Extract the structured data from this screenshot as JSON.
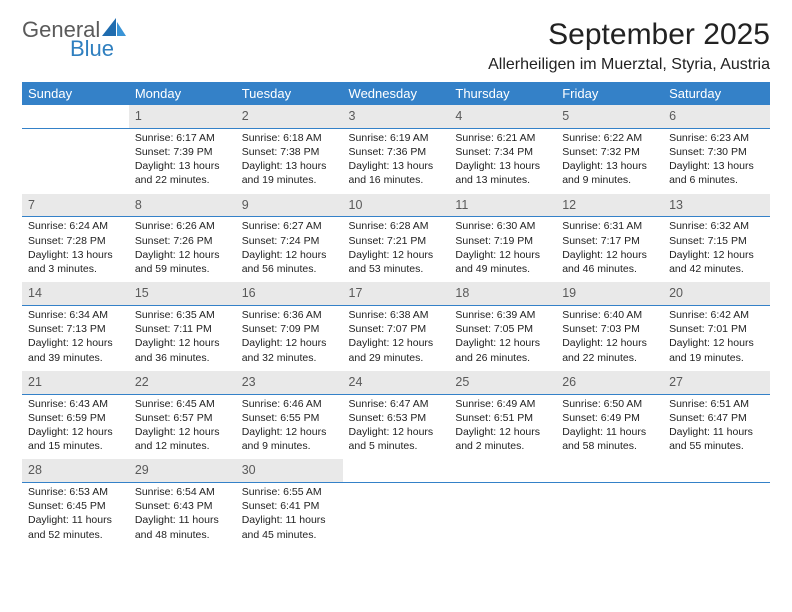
{
  "logo": {
    "text1": "General",
    "text2": "Blue",
    "icon_color": "#2f7fbf"
  },
  "title": "September 2025",
  "location": "Allerheiligen im Muerztal, Styria, Austria",
  "colors": {
    "header_bg": "#3481c8",
    "header_fg": "#ffffff",
    "daynum_bg": "#e9e9e9",
    "daynum_fg": "#5a5a5a",
    "rule": "#3481c8"
  },
  "weekdays": [
    "Sunday",
    "Monday",
    "Tuesday",
    "Wednesday",
    "Thursday",
    "Friday",
    "Saturday"
  ],
  "weeks": [
    [
      null,
      {
        "n": "1",
        "sr": "Sunrise: 6:17 AM",
        "ss": "Sunset: 7:39 PM",
        "d1": "Daylight: 13 hours",
        "d2": "and 22 minutes."
      },
      {
        "n": "2",
        "sr": "Sunrise: 6:18 AM",
        "ss": "Sunset: 7:38 PM",
        "d1": "Daylight: 13 hours",
        "d2": "and 19 minutes."
      },
      {
        "n": "3",
        "sr": "Sunrise: 6:19 AM",
        "ss": "Sunset: 7:36 PM",
        "d1": "Daylight: 13 hours",
        "d2": "and 16 minutes."
      },
      {
        "n": "4",
        "sr": "Sunrise: 6:21 AM",
        "ss": "Sunset: 7:34 PM",
        "d1": "Daylight: 13 hours",
        "d2": "and 13 minutes."
      },
      {
        "n": "5",
        "sr": "Sunrise: 6:22 AM",
        "ss": "Sunset: 7:32 PM",
        "d1": "Daylight: 13 hours",
        "d2": "and 9 minutes."
      },
      {
        "n": "6",
        "sr": "Sunrise: 6:23 AM",
        "ss": "Sunset: 7:30 PM",
        "d1": "Daylight: 13 hours",
        "d2": "and 6 minutes."
      }
    ],
    [
      {
        "n": "7",
        "sr": "Sunrise: 6:24 AM",
        "ss": "Sunset: 7:28 PM",
        "d1": "Daylight: 13 hours",
        "d2": "and 3 minutes."
      },
      {
        "n": "8",
        "sr": "Sunrise: 6:26 AM",
        "ss": "Sunset: 7:26 PM",
        "d1": "Daylight: 12 hours",
        "d2": "and 59 minutes."
      },
      {
        "n": "9",
        "sr": "Sunrise: 6:27 AM",
        "ss": "Sunset: 7:24 PM",
        "d1": "Daylight: 12 hours",
        "d2": "and 56 minutes."
      },
      {
        "n": "10",
        "sr": "Sunrise: 6:28 AM",
        "ss": "Sunset: 7:21 PM",
        "d1": "Daylight: 12 hours",
        "d2": "and 53 minutes."
      },
      {
        "n": "11",
        "sr": "Sunrise: 6:30 AM",
        "ss": "Sunset: 7:19 PM",
        "d1": "Daylight: 12 hours",
        "d2": "and 49 minutes."
      },
      {
        "n": "12",
        "sr": "Sunrise: 6:31 AM",
        "ss": "Sunset: 7:17 PM",
        "d1": "Daylight: 12 hours",
        "d2": "and 46 minutes."
      },
      {
        "n": "13",
        "sr": "Sunrise: 6:32 AM",
        "ss": "Sunset: 7:15 PM",
        "d1": "Daylight: 12 hours",
        "d2": "and 42 minutes."
      }
    ],
    [
      {
        "n": "14",
        "sr": "Sunrise: 6:34 AM",
        "ss": "Sunset: 7:13 PM",
        "d1": "Daylight: 12 hours",
        "d2": "and 39 minutes."
      },
      {
        "n": "15",
        "sr": "Sunrise: 6:35 AM",
        "ss": "Sunset: 7:11 PM",
        "d1": "Daylight: 12 hours",
        "d2": "and 36 minutes."
      },
      {
        "n": "16",
        "sr": "Sunrise: 6:36 AM",
        "ss": "Sunset: 7:09 PM",
        "d1": "Daylight: 12 hours",
        "d2": "and 32 minutes."
      },
      {
        "n": "17",
        "sr": "Sunrise: 6:38 AM",
        "ss": "Sunset: 7:07 PM",
        "d1": "Daylight: 12 hours",
        "d2": "and 29 minutes."
      },
      {
        "n": "18",
        "sr": "Sunrise: 6:39 AM",
        "ss": "Sunset: 7:05 PM",
        "d1": "Daylight: 12 hours",
        "d2": "and 26 minutes."
      },
      {
        "n": "19",
        "sr": "Sunrise: 6:40 AM",
        "ss": "Sunset: 7:03 PM",
        "d1": "Daylight: 12 hours",
        "d2": "and 22 minutes."
      },
      {
        "n": "20",
        "sr": "Sunrise: 6:42 AM",
        "ss": "Sunset: 7:01 PM",
        "d1": "Daylight: 12 hours",
        "d2": "and 19 minutes."
      }
    ],
    [
      {
        "n": "21",
        "sr": "Sunrise: 6:43 AM",
        "ss": "Sunset: 6:59 PM",
        "d1": "Daylight: 12 hours",
        "d2": "and 15 minutes."
      },
      {
        "n": "22",
        "sr": "Sunrise: 6:45 AM",
        "ss": "Sunset: 6:57 PM",
        "d1": "Daylight: 12 hours",
        "d2": "and 12 minutes."
      },
      {
        "n": "23",
        "sr": "Sunrise: 6:46 AM",
        "ss": "Sunset: 6:55 PM",
        "d1": "Daylight: 12 hours",
        "d2": "and 9 minutes."
      },
      {
        "n": "24",
        "sr": "Sunrise: 6:47 AM",
        "ss": "Sunset: 6:53 PM",
        "d1": "Daylight: 12 hours",
        "d2": "and 5 minutes."
      },
      {
        "n": "25",
        "sr": "Sunrise: 6:49 AM",
        "ss": "Sunset: 6:51 PM",
        "d1": "Daylight: 12 hours",
        "d2": "and 2 minutes."
      },
      {
        "n": "26",
        "sr": "Sunrise: 6:50 AM",
        "ss": "Sunset: 6:49 PM",
        "d1": "Daylight: 11 hours",
        "d2": "and 58 minutes."
      },
      {
        "n": "27",
        "sr": "Sunrise: 6:51 AM",
        "ss": "Sunset: 6:47 PM",
        "d1": "Daylight: 11 hours",
        "d2": "and 55 minutes."
      }
    ],
    [
      {
        "n": "28",
        "sr": "Sunrise: 6:53 AM",
        "ss": "Sunset: 6:45 PM",
        "d1": "Daylight: 11 hours",
        "d2": "and 52 minutes."
      },
      {
        "n": "29",
        "sr": "Sunrise: 6:54 AM",
        "ss": "Sunset: 6:43 PM",
        "d1": "Daylight: 11 hours",
        "d2": "and 48 minutes."
      },
      {
        "n": "30",
        "sr": "Sunrise: 6:55 AM",
        "ss": "Sunset: 6:41 PM",
        "d1": "Daylight: 11 hours",
        "d2": "and 45 minutes."
      },
      null,
      null,
      null,
      null
    ]
  ]
}
